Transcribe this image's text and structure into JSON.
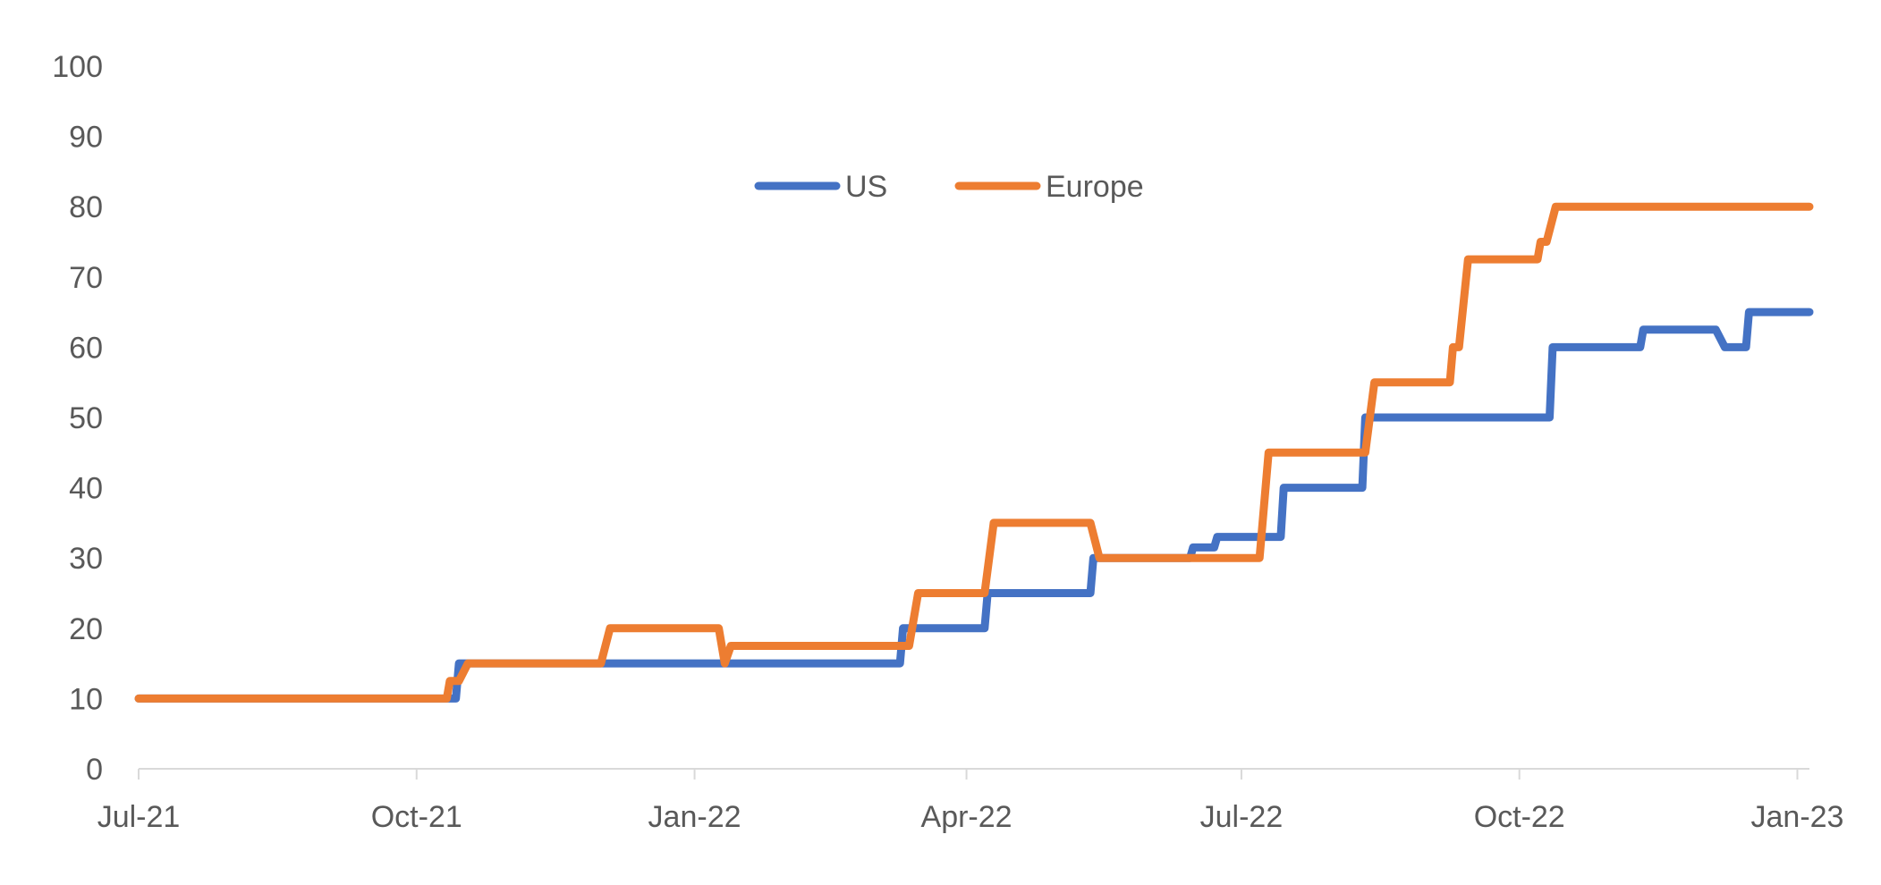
{
  "chart_data": {
    "type": "line",
    "title": "",
    "xlabel": "",
    "ylabel": "",
    "ylim": [
      0,
      100
    ],
    "yticks": [
      0,
      10,
      20,
      30,
      40,
      50,
      60,
      70,
      80,
      90,
      100
    ],
    "xlim": [
      "2021-07-01",
      "2023-01-05"
    ],
    "xticks": [
      {
        "date": "2021-07-01",
        "label": "Jul-21"
      },
      {
        "date": "2021-10-01",
        "label": "Oct-21"
      },
      {
        "date": "2022-01-01",
        "label": "Jan-22"
      },
      {
        "date": "2022-04-01",
        "label": "Apr-22"
      },
      {
        "date": "2022-07-01",
        "label": "Jul-22"
      },
      {
        "date": "2022-10-01",
        "label": "Oct-22"
      },
      {
        "date": "2023-01-01",
        "label": "Jan-23"
      }
    ],
    "grid": false,
    "legend_position": "top-center",
    "series": [
      {
        "name": "US",
        "color": "#4472C4",
        "points": [
          [
            "2021-07-01",
            10
          ],
          [
            "2021-10-14",
            10
          ],
          [
            "2021-10-15",
            15
          ],
          [
            "2022-01-15",
            15
          ],
          [
            "2022-01-17",
            15
          ],
          [
            "2022-03-10",
            15
          ],
          [
            "2022-03-11",
            20
          ],
          [
            "2022-04-07",
            20
          ],
          [
            "2022-04-08",
            25
          ],
          [
            "2022-05-12",
            25
          ],
          [
            "2022-05-13",
            30
          ],
          [
            "2022-06-14",
            30
          ],
          [
            "2022-06-15",
            31.5
          ],
          [
            "2022-06-22",
            31.5
          ],
          [
            "2022-06-23",
            33
          ],
          [
            "2022-07-14",
            33
          ],
          [
            "2022-07-15",
            40
          ],
          [
            "2022-08-10",
            40
          ],
          [
            "2022-08-11",
            50
          ],
          [
            "2022-10-11",
            50
          ],
          [
            "2022-10-12",
            60
          ],
          [
            "2022-11-10",
            60
          ],
          [
            "2022-11-11",
            62.5
          ],
          [
            "2022-12-05",
            62.5
          ],
          [
            "2022-12-08",
            60
          ],
          [
            "2022-12-15",
            60
          ],
          [
            "2022-12-16",
            65
          ],
          [
            "2023-01-05",
            65
          ]
        ]
      },
      {
        "name": "Europe",
        "color": "#ED7D31",
        "points": [
          [
            "2021-07-01",
            10
          ],
          [
            "2021-10-11",
            10
          ],
          [
            "2021-10-12",
            12.5
          ],
          [
            "2021-10-15",
            12.5
          ],
          [
            "2021-10-18",
            15
          ],
          [
            "2021-12-01",
            15
          ],
          [
            "2021-12-04",
            20
          ],
          [
            "2022-01-09",
            20
          ],
          [
            "2022-01-11",
            15
          ],
          [
            "2022-01-13",
            17.5
          ],
          [
            "2022-03-13",
            17.5
          ],
          [
            "2022-03-16",
            25
          ],
          [
            "2022-04-07",
            25
          ],
          [
            "2022-04-10",
            35
          ],
          [
            "2022-05-12",
            35
          ],
          [
            "2022-05-15",
            30
          ],
          [
            "2022-07-07",
            30
          ],
          [
            "2022-07-10",
            45
          ],
          [
            "2022-08-11",
            45
          ],
          [
            "2022-08-14",
            55
          ],
          [
            "2022-09-08",
            55
          ],
          [
            "2022-09-09",
            60
          ],
          [
            "2022-09-11",
            60
          ],
          [
            "2022-09-14",
            72.5
          ],
          [
            "2022-10-07",
            72.5
          ],
          [
            "2022-10-08",
            75
          ],
          [
            "2022-10-10",
            75
          ],
          [
            "2022-10-13",
            80
          ],
          [
            "2023-01-05",
            80
          ]
        ]
      }
    ]
  }
}
